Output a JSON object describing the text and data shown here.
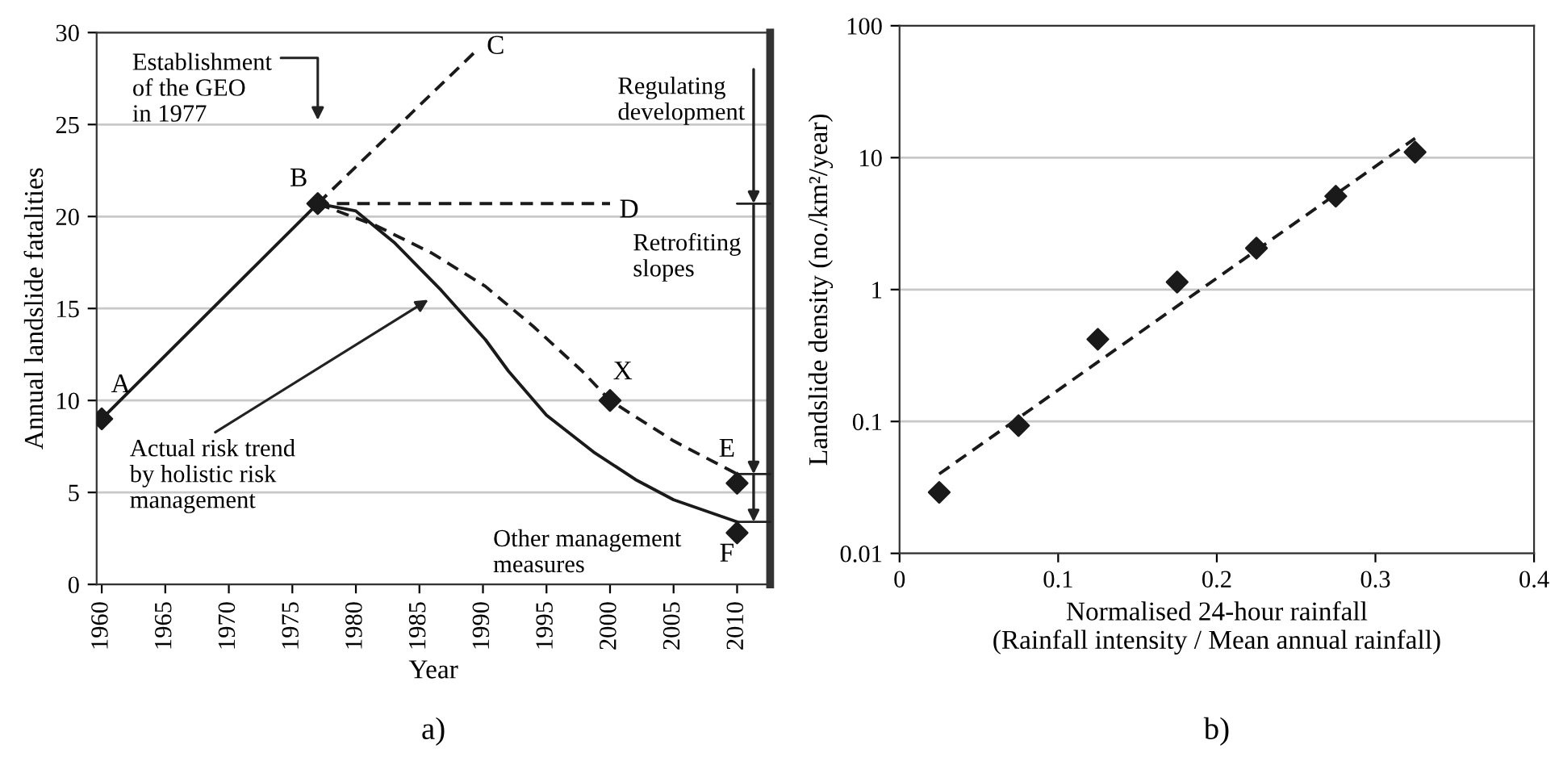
{
  "chart_data": [
    {
      "type": "line",
      "xlabel": "Year",
      "ylabel": "Annual landslide fatalities",
      "xlim": [
        1959.6,
        2012.6
      ],
      "xticks": [
        1960,
        1965,
        1970,
        1975,
        1980,
        1985,
        1990,
        1995,
        2000,
        2005,
        2010
      ],
      "ylim": [
        0,
        30
      ],
      "yticks": [
        0,
        5,
        10,
        15,
        20,
        25,
        30
      ],
      "grid": "y",
      "series": [
        {
          "color": "#1a1a1a",
          "line_style": "solid",
          "x": [
            1960,
            1977,
            1980,
            1983,
            1986.7,
            1990.2,
            1992,
            1995,
            1998.7,
            2002,
            2005,
            2010
          ],
          "values": [
            9,
            20.7,
            20.3,
            18.6,
            16,
            13.3,
            11.6,
            9.2,
            7.2,
            5.7,
            4.6,
            3.4
          ]
        },
        {
          "color": "#1a1a1a",
          "line_style": "dashed",
          "x": [
            1977,
            1981.6,
            1986,
            1990.2,
            1994,
            1997.8,
            2000,
            2005,
            2010
          ],
          "values": [
            20.7,
            19.5,
            18,
            16.2,
            14,
            11.6,
            10,
            7.8,
            6
          ]
        },
        {
          "color": "#1a1a1a",
          "line_style": "dashed",
          "x": [
            1977,
            1989.3
          ],
          "values": [
            20.7,
            28.9
          ]
        },
        {
          "color": "#1a1a1a",
          "line_style": "dashed",
          "x": [
            1978.5,
            2000
          ],
          "values": [
            20.7,
            20.7
          ]
        },
        {
          "type": "scatter",
          "color": "#1a1a1a",
          "marker": "diamond",
          "x": [
            1960,
            1977,
            2000,
            2010,
            2010
          ],
          "values": [
            9,
            20.7,
            10,
            5.5,
            2.8
          ]
        }
      ],
      "annotations": [
        "A",
        "B",
        "C",
        "D",
        "X",
        "E",
        "F",
        "Establishment\nof the GEO\nin 1977",
        "Actual risk trend\nby holistic risk\nmanagement",
        "Regulating\ndevelopment",
        "Retrofiting\nslopes",
        "Other management\nmeasures",
        "a)"
      ]
    },
    {
      "type": "scatter",
      "xlabel": "Normalised 24-hour rainfall\n(Rainfall intensity / Mean annual rainfall)",
      "ylabel": "Landslide density (no./km²/year)",
      "log": "y",
      "xlim": [
        0,
        0.4
      ],
      "xticks": [
        0,
        0.1,
        0.2,
        0.3,
        0.4
      ],
      "ylim": [
        0.01,
        100
      ],
      "yticks": [
        0.01,
        0.1,
        1,
        10,
        100
      ],
      "grid": "y",
      "series": [
        {
          "color": "#1a1a1a",
          "marker": "diamond",
          "x": [
            0.025,
            0.075,
            0.125,
            0.175,
            0.225,
            0.275,
            0.325
          ],
          "values": [
            0.029,
            0.093,
            0.42,
            1.14,
            2.06,
            5.1,
            11
          ]
        },
        {
          "type": "line",
          "color": "#1a1a1a",
          "line_style": "dashed",
          "x": [
            0.025,
            0.325
          ],
          "values": [
            0.04,
            14
          ]
        }
      ],
      "annotations": [
        "b)"
      ]
    }
  ]
}
